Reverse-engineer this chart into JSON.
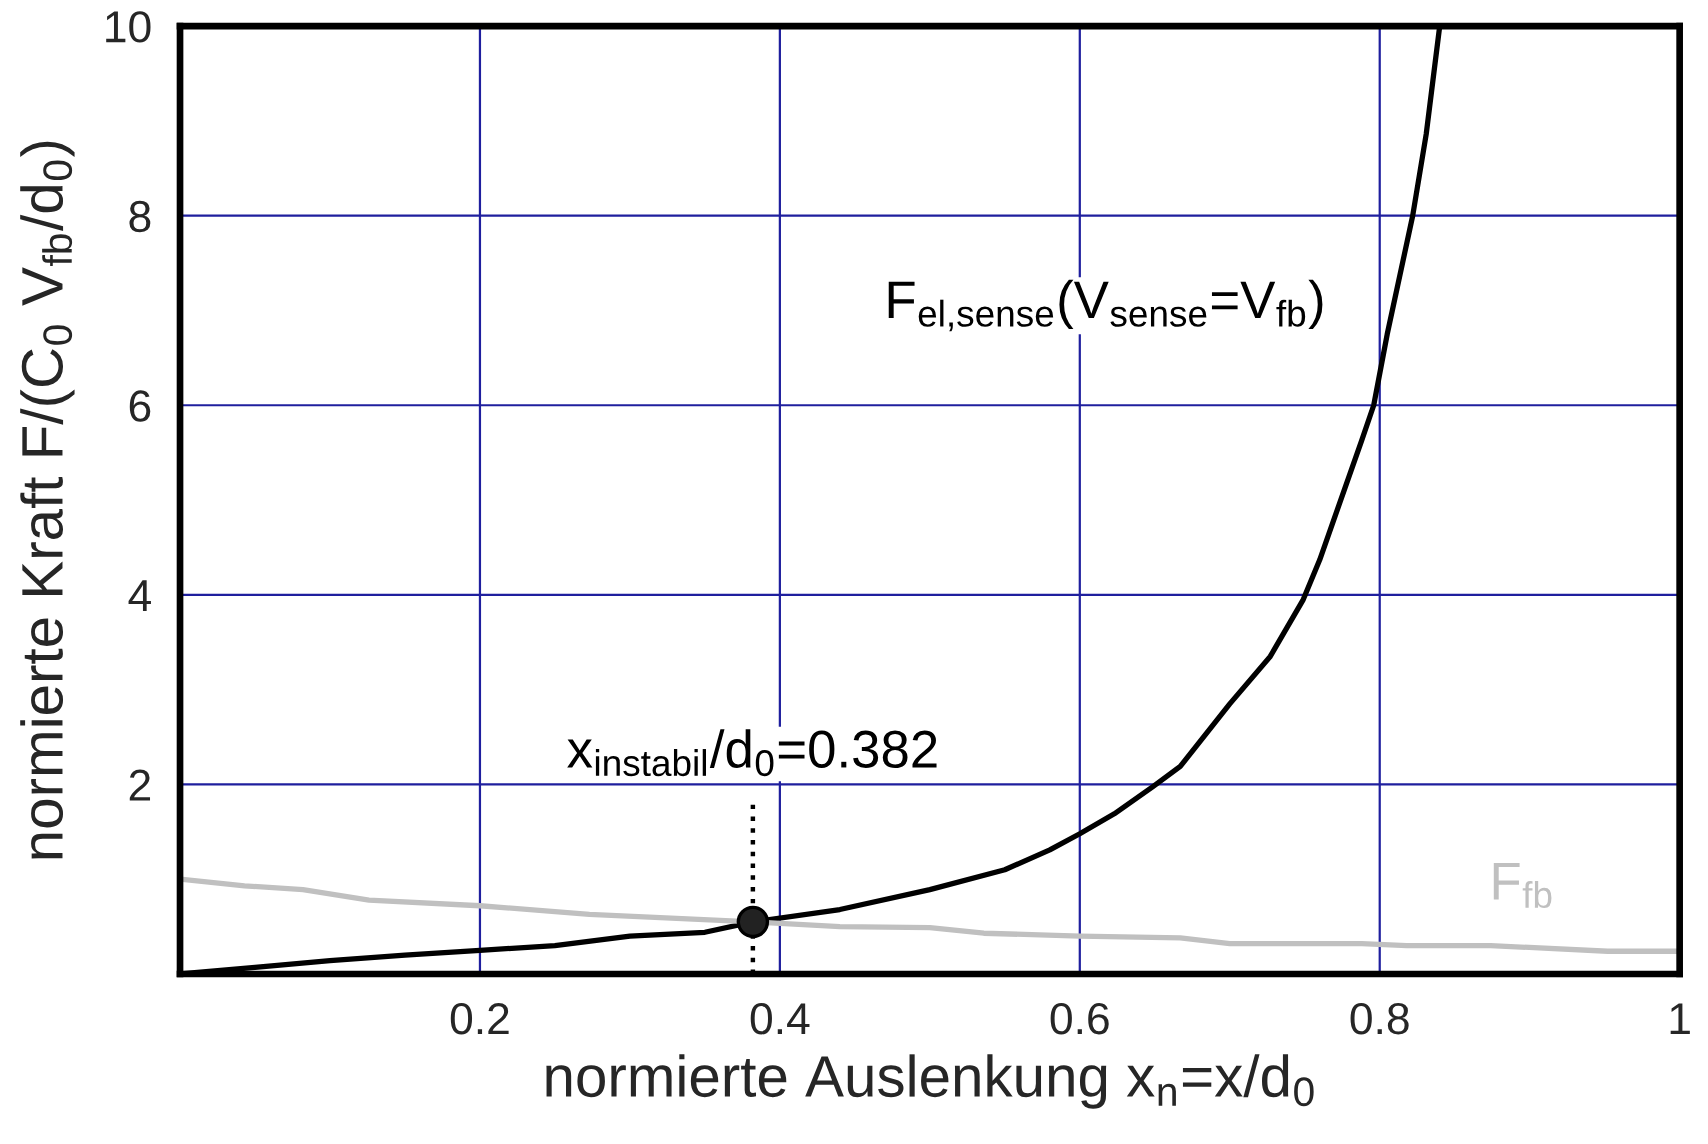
{
  "chart_data": {
    "type": "line",
    "xlabel": "normierte Auslenkung x$_{n}$=x/d$_{0}$",
    "ylabel": "normierte Kraft F/(C$_{0}$ V$_{fb}$/d$_{0}$)",
    "xlim": [
      0,
      1
    ],
    "ylim": [
      0,
      10
    ],
    "xticks": [
      0.2,
      0.4,
      0.6,
      0.8,
      1
    ],
    "yticks": [
      2,
      4,
      6,
      8,
      10
    ],
    "grid": true,
    "series": [
      {
        "name": "F$_{el,sense}$(V$_{sense}$=V$_{fb}$)",
        "color": "#000000",
        "x": [
          0,
          0.05,
          0.1,
          0.15,
          0.2,
          0.25,
          0.3,
          0.35,
          0.382,
          0.44,
          0.5,
          0.55,
          0.58,
          0.6,
          0.623,
          0.649,
          0.667,
          0.7,
          0.727,
          0.749,
          0.76,
          0.788,
          0.796,
          0.805,
          0.822,
          0.831,
          0.84
        ],
        "values": [
          0,
          0.07,
          0.14,
          0.2,
          0.25,
          0.3,
          0.4,
          0.44,
          0.55,
          0.68,
          0.89,
          1.1,
          1.31,
          1.48,
          1.69,
          1.98,
          2.19,
          2.85,
          3.35,
          3.95,
          4.37,
          5.63,
          6.0,
          6.75,
          8.0,
          8.86,
          10
        ]
      },
      {
        "name": "F$_{fb}$",
        "color": "#c0c0c0",
        "x": [
          0,
          0.043,
          0.082,
          0.126,
          0.2,
          0.273,
          0.382,
          0.44,
          0.5,
          0.536,
          0.6,
          0.667,
          0.7,
          0.788,
          0.818,
          0.874,
          0.952,
          1.0
        ],
        "values": [
          1.0,
          0.93,
          0.89,
          0.78,
          0.72,
          0.63,
          0.55,
          0.5,
          0.49,
          0.43,
          0.4,
          0.38,
          0.32,
          0.32,
          0.3,
          0.3,
          0.24,
          0.24
        ]
      },
      {
        "type": "scatter",
        "color": "#222222",
        "marker": "circle",
        "x": [
          0.382
        ],
        "values": [
          0.55
        ]
      }
    ],
    "ref_lines": [
      {
        "axis": "x",
        "value": 0.382,
        "label": "x$_{instabil}$/d$_{0}$=0.382",
        "line_style": "dotted",
        "color": "#000000"
      }
    ]
  }
}
